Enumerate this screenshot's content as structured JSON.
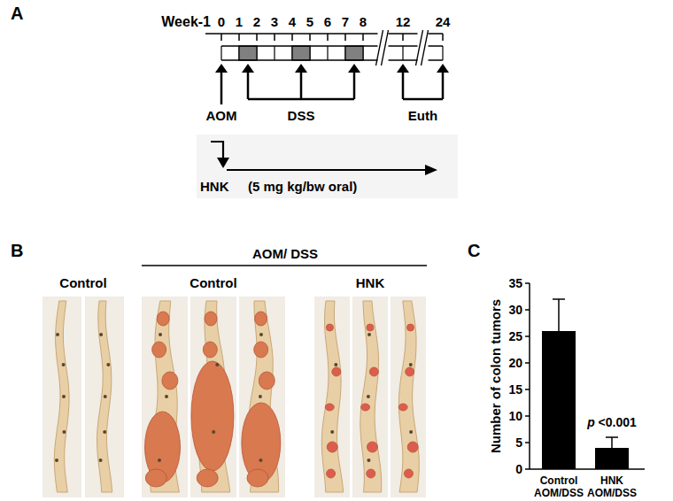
{
  "figure": {
    "panel_labels": [
      "A",
      "B",
      "C"
    ]
  },
  "timeline": {
    "week_label": "Week-1",
    "weeks": [
      0,
      1,
      2,
      3,
      4,
      5,
      6,
      7,
      8,
      12,
      24
    ],
    "aom_week": 0,
    "dss_weeks": [
      1,
      4,
      7
    ],
    "euth_weeks": [
      12,
      24
    ],
    "aom_label": "AOM",
    "dss_label": "DSS",
    "euth_label": "Euth",
    "treatment": "HNK",
    "dose": "(5 mg kg/bw oral)"
  },
  "photos": {
    "control_label": "Control",
    "control_count": 2,
    "group_label": "AOM/ DSS",
    "groups": [
      {
        "label": "Control",
        "count": 3
      },
      {
        "label": "HNK",
        "count": 3
      }
    ]
  },
  "chart_data": {
    "type": "bar",
    "categories": [
      "Control AOM/DSS",
      "HNK AOM/DSS"
    ],
    "values": [
      26,
      4
    ],
    "errors": [
      6,
      2
    ],
    "color": "#000000",
    "y_label": "Number of colon tumors",
    "annotation": "p <0.001",
    "ylim": [
      0,
      35
    ],
    "yticks": [
      0,
      5,
      10,
      15,
      20,
      25,
      30,
      35
    ],
    "grid": false
  }
}
